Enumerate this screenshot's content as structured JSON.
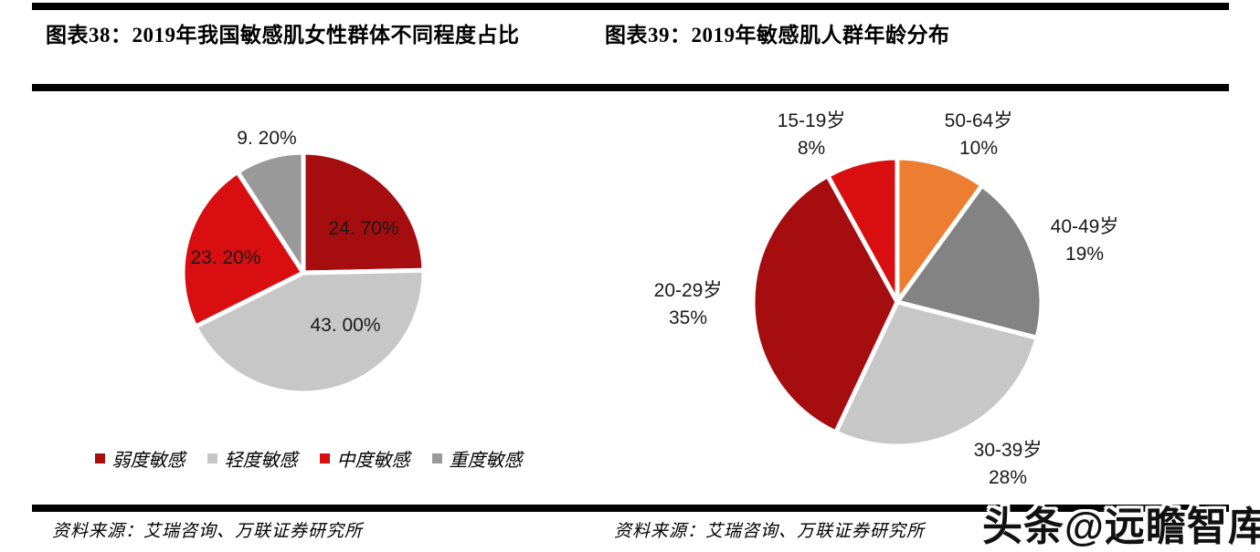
{
  "page": {
    "source_left": "资料来源：艾瑞咨询、万联证券研究所",
    "source_right": "资料来源：艾瑞咨询、万联证券研究所",
    "watermark": "头条@远瞻智库"
  },
  "chart_data": [
    {
      "type": "pie",
      "title": "图表38：2019年我国敏感肌女性群体不同程度占比",
      "categories": [
        "弱度敏感",
        "轻度敏感",
        "中度敏感",
        "重度敏感"
      ],
      "values": [
        24.7,
        43.0,
        23.2,
        9.2
      ],
      "data_labels": [
        "24. 70%",
        "43. 00%",
        "23. 20%",
        "9. 20%"
      ],
      "colors": [
        "#A60D0F",
        "#C7C7C7",
        "#D90E10",
        "#999999"
      ],
      "start_angle_deg": 0,
      "direction": "clockwise",
      "legend_position": "bottom",
      "slice_border_color": "#ffffff"
    },
    {
      "type": "pie",
      "title": "图表39：2019年敏感肌人群年龄分布",
      "categories": [
        "50-64岁",
        "40-49岁",
        "30-39岁",
        "20-29岁",
        "15-19岁"
      ],
      "values": [
        10,
        19,
        28,
        35,
        8
      ],
      "data_labels": [
        {
          "text": "50-64岁",
          "pct": "10%"
        },
        {
          "text": "40-49岁",
          "pct": "19%"
        },
        {
          "text": "30-39岁",
          "pct": "28%"
        },
        {
          "text": "20-29岁",
          "pct": "35%"
        },
        {
          "text": "15-19岁",
          "pct": "8%"
        }
      ],
      "colors": [
        "#ED7D31",
        "#838383",
        "#C7C7C7",
        "#A60D0F",
        "#D90E10"
      ],
      "start_angle_deg": 0,
      "direction": "clockwise",
      "legend_position": "none",
      "slice_border_color": "#ffffff"
    }
  ]
}
